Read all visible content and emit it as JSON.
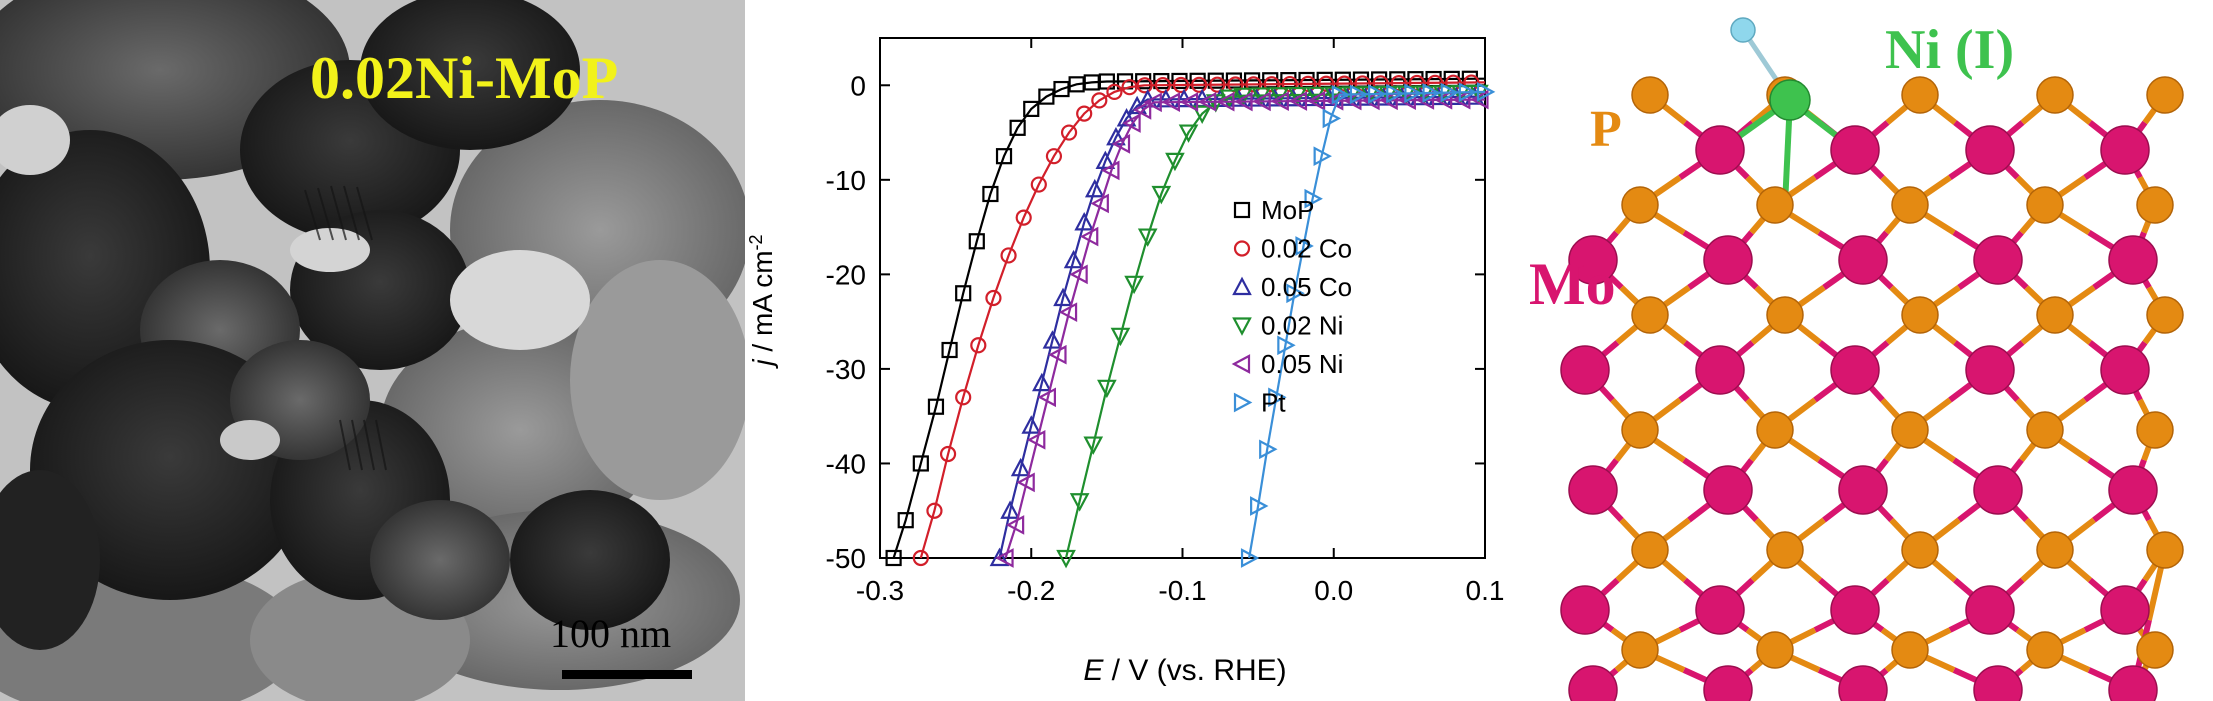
{
  "tem": {
    "label": "0.02Ni-MoP",
    "scale_text": "100 nm",
    "label_color": "#f2f21a"
  },
  "chart_data": {
    "type": "line",
    "xlabel_var": "E",
    "xlabel_rest": " / V (vs. RHE)",
    "ylabel_var": "j",
    "ylabel_rest": " / mA cm",
    "ylabel_sup": "-2",
    "xlim": [
      -0.3,
      0.1
    ],
    "ylim": [
      -50,
      5
    ],
    "x_ticks": [
      -0.3,
      -0.2,
      -0.1,
      0.0,
      0.1
    ],
    "x_tick_labels": [
      "-0.3",
      "-0.2",
      "-0.1",
      "0.0",
      "0.1"
    ],
    "y_ticks": [
      0,
      -10,
      -20,
      -30,
      -40,
      -50
    ],
    "y_tick_labels": [
      "0",
      "-10",
      "-20",
      "-30",
      "-40",
      "-50"
    ],
    "legend_position": "right",
    "series": [
      {
        "name": "MoP",
        "color": "#000000",
        "marker": "square",
        "x": [
          -0.291,
          -0.283,
          -0.273,
          -0.263,
          -0.254,
          -0.245,
          -0.236,
          -0.227,
          -0.218,
          -0.209,
          -0.2,
          -0.19,
          -0.18,
          -0.17,
          -0.16,
          -0.15
        ],
        "y": [
          -50,
          -46,
          -40,
          -34,
          -28,
          -22,
          -16.5,
          -11.5,
          -7.5,
          -4.5,
          -2.5,
          -1.2,
          -0.4,
          0.1,
          0.3,
          0.4
        ]
      },
      {
        "name": "0.02 Co",
        "color": "#d21f2a",
        "marker": "circle",
        "x": [
          -0.273,
          -0.264,
          -0.255,
          -0.245,
          -0.235,
          -0.225,
          -0.215,
          -0.205,
          -0.195,
          -0.185,
          -0.175,
          -0.165,
          -0.155,
          -0.145,
          -0.135,
          -0.125
        ],
        "y": [
          -50,
          -45,
          -39,
          -33,
          -27.5,
          -22.5,
          -18,
          -14,
          -10.5,
          -7.5,
          -5,
          -3,
          -1.6,
          -0.7,
          -0.2,
          0
        ]
      },
      {
        "name": "0.05 Co",
        "color": "#2e2ea0",
        "marker": "triangle-up",
        "x": [
          -0.221,
          -0.214,
          -0.207,
          -0.2,
          -0.193,
          -0.186,
          -0.179,
          -0.172,
          -0.165,
          -0.158,
          -0.151,
          -0.144,
          -0.137,
          -0.13,
          -0.123
        ],
        "y": [
          -50,
          -45,
          -40.5,
          -36,
          -31.5,
          -27,
          -22.5,
          -18.5,
          -14.5,
          -11,
          -8,
          -5.5,
          -3.5,
          -2.2,
          -1.5
        ]
      },
      {
        "name": "0.02 Ni",
        "color": "#1f8f2e",
        "marker": "triangle-down",
        "x": [
          -0.177,
          -0.168,
          -0.159,
          -0.15,
          -0.141,
          -0.132,
          -0.123,
          -0.114,
          -0.105,
          -0.096,
          -0.087,
          -0.078,
          -0.069,
          -0.06
        ],
        "y": [
          -50,
          -44,
          -38,
          -32,
          -26.5,
          -21,
          -16,
          -11.5,
          -8,
          -5,
          -3,
          -1.8,
          -1.3,
          -1.1
        ]
      },
      {
        "name": "0.05 Ni",
        "color": "#8e2a9e",
        "marker": "triangle-left",
        "x": [
          -0.217,
          -0.21,
          -0.203,
          -0.196,
          -0.189,
          -0.182,
          -0.175,
          -0.168,
          -0.161,
          -0.154,
          -0.147,
          -0.14,
          -0.133,
          -0.126,
          -0.119
        ],
        "y": [
          -50,
          -46.5,
          -42,
          -37.5,
          -33,
          -28.5,
          -24,
          -20,
          -16,
          -12.5,
          -9,
          -6.2,
          -4,
          -2.6,
          -1.8
        ]
      },
      {
        "name": "Pt",
        "color": "#3a8fd8",
        "marker": "triangle-right",
        "x": [
          -0.056,
          -0.05,
          -0.044,
          -0.038,
          -0.032,
          -0.026,
          -0.02,
          -0.014,
          -0.008,
          -0.002,
          0.004
        ],
        "y": [
          -50,
          -44.5,
          -38.5,
          -33,
          -27.5,
          -22,
          -17,
          -12,
          -7.5,
          -3.5,
          -1
        ]
      }
    ]
  },
  "model": {
    "label_ni": "Ni (I)",
    "label_p": "P",
    "label_mo": "Mo",
    "colors": {
      "mo": "#d8156f",
      "p": "#e48a12",
      "ni": "#3ec24e",
      "h": "#8fd7ec"
    }
  }
}
